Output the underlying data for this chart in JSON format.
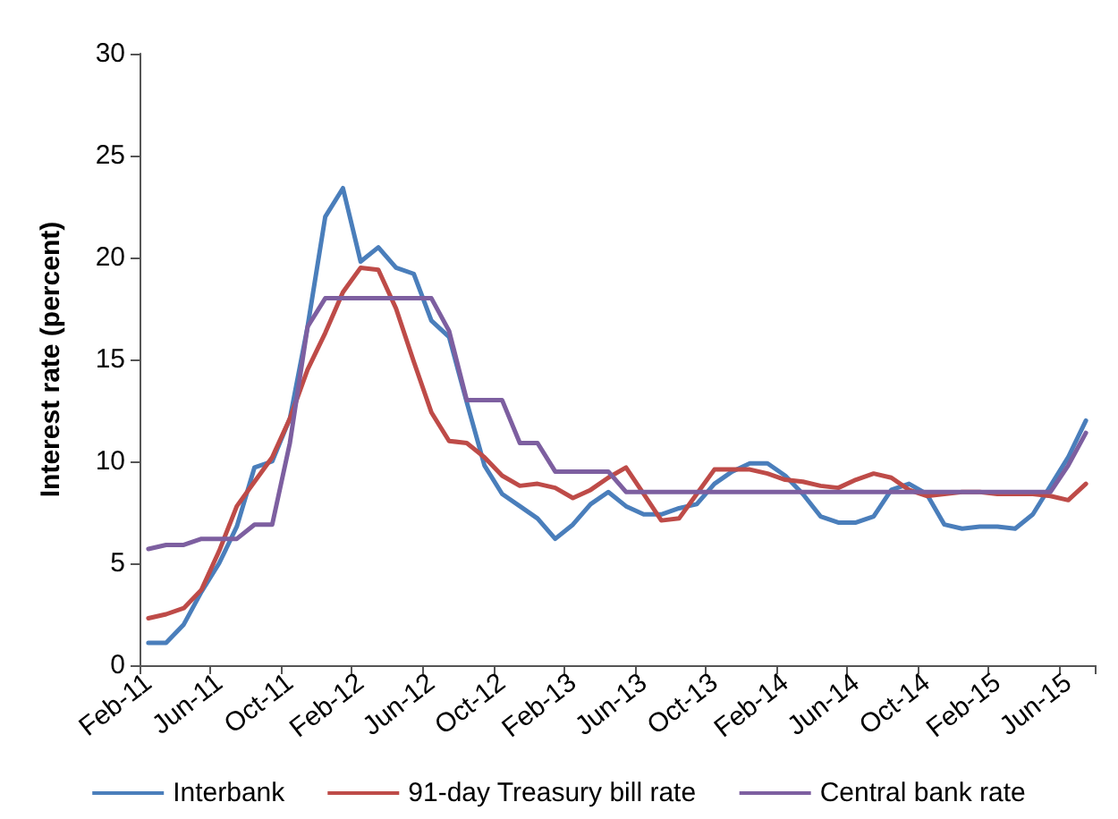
{
  "chart_data": {
    "type": "line",
    "ylabel": "Interest rate (percent)",
    "categories": [
      "Feb-11",
      null,
      null,
      null,
      "Jun-11",
      null,
      null,
      null,
      "Oct-11",
      null,
      null,
      null,
      "Feb-12",
      null,
      null,
      null,
      "Jun-12",
      null,
      null,
      null,
      "Oct-12",
      null,
      null,
      null,
      "Feb-13",
      null,
      null,
      null,
      "Jun-13",
      null,
      null,
      null,
      "Oct-13",
      null,
      null,
      null,
      "Feb-14",
      null,
      null,
      null,
      "Jun-14",
      null,
      null,
      null,
      "Oct-14",
      null,
      null,
      null,
      "Feb-15",
      null,
      null,
      null,
      "Jun-15",
      null
    ],
    "series": [
      {
        "name": "Interbank",
        "color": "#4a7ebb",
        "values": [
          1.1,
          1.1,
          2.0,
          3.6,
          5.0,
          6.8,
          9.7,
          10.0,
          12.1,
          16.6,
          22.0,
          23.4,
          19.8,
          20.5,
          19.5,
          19.2,
          16.9,
          16.1,
          12.9,
          9.8,
          8.4,
          7.8,
          7.2,
          6.2,
          6.9,
          7.9,
          8.5,
          7.8,
          7.4,
          7.4,
          7.7,
          7.9,
          8.9,
          9.5,
          9.9,
          9.9,
          9.3,
          8.4,
          7.3,
          7.0,
          7.0,
          7.3,
          8.6,
          8.9,
          8.4,
          6.9,
          6.7,
          6.8,
          6.8,
          6.7,
          7.4,
          8.8,
          10.2,
          12.0
        ]
      },
      {
        "name": "91-day Treasury bill rate",
        "color": "#be4b48",
        "values": [
          2.3,
          2.5,
          2.8,
          3.7,
          5.6,
          7.8,
          9.0,
          10.2,
          12.1,
          14.5,
          16.3,
          18.3,
          19.5,
          19.4,
          17.5,
          14.9,
          12.4,
          11.0,
          10.9,
          10.2,
          9.3,
          8.8,
          8.9,
          8.7,
          8.2,
          8.6,
          9.2,
          9.7,
          8.4,
          7.1,
          7.2,
          8.4,
          9.6,
          9.6,
          9.6,
          9.4,
          9.1,
          9.0,
          8.8,
          8.7,
          9.1,
          9.4,
          9.2,
          8.6,
          8.3,
          8.4,
          8.5,
          8.5,
          8.4,
          8.4,
          8.4,
          8.3,
          8.1,
          8.9
        ]
      },
      {
        "name": "Central bank rate",
        "color": "#7d5fa0",
        "values": [
          5.7,
          5.9,
          5.9,
          6.2,
          6.2,
          6.2,
          6.9,
          6.9,
          10.9,
          16.6,
          18.0,
          18.0,
          18.0,
          18.0,
          18.0,
          18.0,
          18.0,
          16.4,
          13.0,
          13.0,
          13.0,
          10.9,
          10.9,
          9.5,
          9.5,
          9.5,
          9.5,
          8.5,
          8.5,
          8.5,
          8.5,
          8.5,
          8.5,
          8.5,
          8.5,
          8.5,
          8.5,
          8.5,
          8.5,
          8.5,
          8.5,
          8.5,
          8.5,
          8.5,
          8.5,
          8.5,
          8.5,
          8.5,
          8.5,
          8.5,
          8.5,
          8.5,
          9.8,
          11.4
        ]
      }
    ],
    "ylim": [
      0,
      30
    ],
    "yticks": [
      0,
      5,
      10,
      15,
      20,
      25,
      30
    ],
    "grid": false,
    "legend": "bottom",
    "marker": "none",
    "line_style": "solid"
  }
}
